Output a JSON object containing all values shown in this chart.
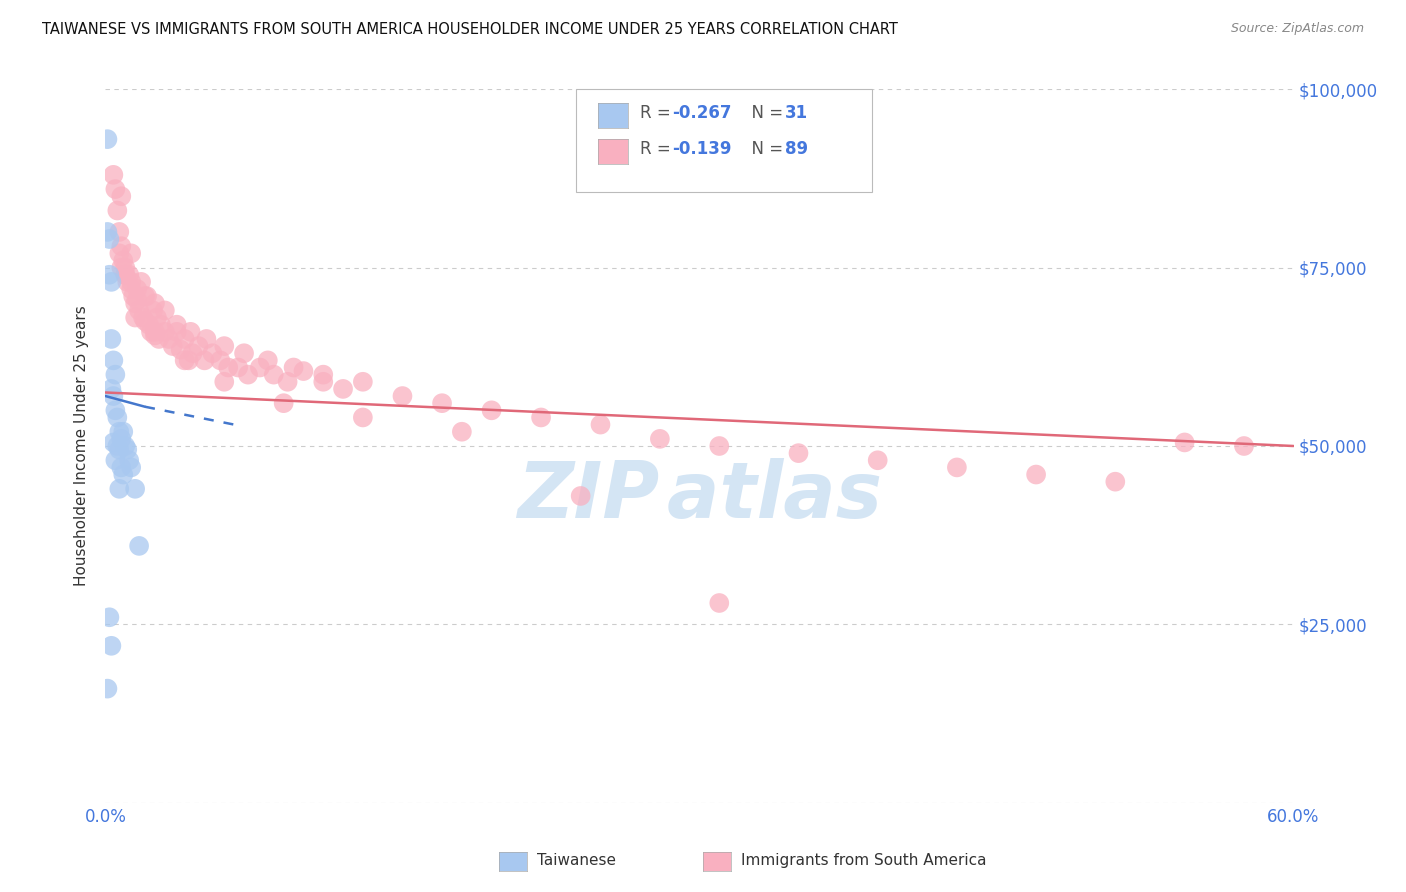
{
  "title": "TAIWANESE VS IMMIGRANTS FROM SOUTH AMERICA HOUSEHOLDER INCOME UNDER 25 YEARS CORRELATION CHART",
  "source": "Source: ZipAtlas.com",
  "ylabel": "Householder Income Under 25 years",
  "xlim": [
    0.0,
    0.6
  ],
  "ylim": [
    0,
    100000
  ],
  "bg_color": "#ffffff",
  "grid_color": "#cccccc",
  "blue_scatter_color": "#a8c8f0",
  "pink_scatter_color": "#f9b0c0",
  "trend_blue_color": "#4477cc",
  "trend_pink_color": "#e06878",
  "label_color": "#4477dd",
  "watermark_color": "#b8d4ee",
  "taiwan_R": -0.267,
  "taiwan_N": 31,
  "sa_R": -0.139,
  "sa_N": 89,
  "legend_R1_text": "R = -0.267",
  "legend_N1_text": "N =  31",
  "legend_R2_text": "R = -0.139",
  "legend_N2_text": "N = 89",
  "tai_x": [
    0.001,
    0.001,
    0.002,
    0.002,
    0.002,
    0.003,
    0.003,
    0.003,
    0.003,
    0.004,
    0.004,
    0.004,
    0.005,
    0.005,
    0.005,
    0.006,
    0.006,
    0.007,
    0.007,
    0.007,
    0.008,
    0.008,
    0.009,
    0.009,
    0.01,
    0.011,
    0.012,
    0.013,
    0.015,
    0.017,
    0.001
  ],
  "tai_y": [
    93000,
    80000,
    79000,
    74000,
    26000,
    73000,
    65000,
    58000,
    22000,
    62000,
    57000,
    50500,
    60000,
    55000,
    48000,
    54000,
    50000,
    52000,
    49500,
    44000,
    51000,
    47000,
    52000,
    46000,
    50000,
    49500,
    48000,
    47000,
    44000,
    36000,
    16000
  ],
  "sa_x": [
    0.004,
    0.005,
    0.006,
    0.007,
    0.007,
    0.008,
    0.008,
    0.009,
    0.01,
    0.01,
    0.011,
    0.012,
    0.013,
    0.013,
    0.014,
    0.015,
    0.016,
    0.017,
    0.018,
    0.019,
    0.02,
    0.021,
    0.022,
    0.023,
    0.024,
    0.025,
    0.026,
    0.027,
    0.028,
    0.03,
    0.032,
    0.034,
    0.036,
    0.038,
    0.04,
    0.042,
    0.044,
    0.047,
    0.05,
    0.054,
    0.058,
    0.062,
    0.067,
    0.072,
    0.078,
    0.085,
    0.092,
    0.1,
    0.11,
    0.12,
    0.008,
    0.01,
    0.013,
    0.016,
    0.02,
    0.025,
    0.03,
    0.036,
    0.043,
    0.051,
    0.06,
    0.07,
    0.082,
    0.095,
    0.11,
    0.13,
    0.15,
    0.17,
    0.195,
    0.22,
    0.25,
    0.28,
    0.31,
    0.35,
    0.39,
    0.43,
    0.47,
    0.51,
    0.545,
    0.575,
    0.015,
    0.025,
    0.04,
    0.06,
    0.09,
    0.13,
    0.18,
    0.24,
    0.31
  ],
  "sa_y": [
    88000,
    86000,
    83000,
    80000,
    77000,
    78000,
    85000,
    76000,
    75000,
    74000,
    73000,
    74000,
    72000,
    77000,
    71000,
    70000,
    70500,
    69000,
    73000,
    68000,
    67500,
    71000,
    67000,
    66000,
    69000,
    65500,
    68000,
    65000,
    67000,
    66000,
    65000,
    64000,
    66000,
    63500,
    65000,
    62000,
    63000,
    64000,
    62000,
    63000,
    62000,
    61000,
    61000,
    60000,
    61000,
    60000,
    59000,
    60500,
    59000,
    58000,
    75000,
    74000,
    73000,
    72000,
    71000,
    70000,
    69000,
    67000,
    66000,
    65000,
    64000,
    63000,
    62000,
    61000,
    60000,
    59000,
    57000,
    56000,
    55000,
    54000,
    53000,
    51000,
    50000,
    49000,
    48000,
    47000,
    46000,
    45000,
    50500,
    50000,
    68000,
    66000,
    62000,
    59000,
    56000,
    54000,
    52000,
    43000,
    28000
  ]
}
